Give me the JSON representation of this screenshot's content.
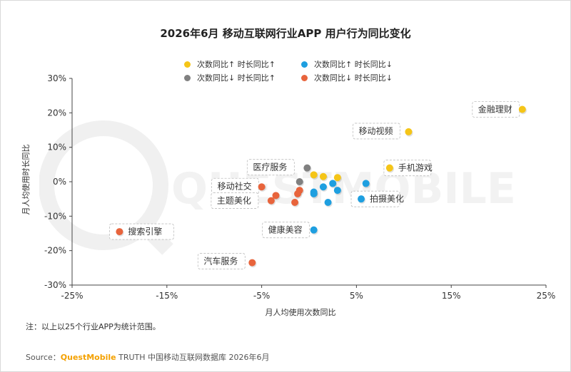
{
  "title": "2026年6月 移动互联网行业APP 用户行为同比变化",
  "legend": [
    {
      "label": "次数同比↑ 时长同比↑",
      "color": "#f5c518",
      "icon": "circle"
    },
    {
      "label": "次数同比↑ 时长同比↓",
      "color": "#1e9fe0",
      "icon": "circle"
    },
    {
      "label": "次数同比↓ 时长同比↑",
      "color": "#808080",
      "icon": "circle"
    },
    {
      "label": "次数同比↓ 时长同比↓",
      "color": "#e8643c",
      "icon": "circle"
    }
  ],
  "note": "注：以上以25个行业APP为统计范围。",
  "source": {
    "prefix": "Source：",
    "brand": "QuestMobile",
    "rest": " TRUTH 中国移动互联网数据库 2026年6月"
  },
  "watermark": "QUESTMOBILE",
  "chart_data": {
    "type": "scatter",
    "xlabel": "月人均使用次数同比",
    "ylabel": "月人均使用时长同比",
    "xlim": [
      -25,
      25
    ],
    "ylim": [
      -30,
      30
    ],
    "x_ticks": [
      "-25%",
      "-15%",
      "-5%",
      "5%",
      "15%",
      "25%"
    ],
    "y_ticks": [
      "30%",
      "20%",
      "10%",
      "0%",
      "-10%",
      "-20%",
      "-30%"
    ],
    "grid": false,
    "points": [
      {
        "x": 22.5,
        "y": 21.0,
        "color": "#f5c518",
        "label": "金融理财"
      },
      {
        "x": 10.5,
        "y": 14.5,
        "color": "#f5c518",
        "label": "移动视频"
      },
      {
        "x": 8.5,
        "y": 4.0,
        "color": "#f5c518",
        "label": "手机游戏"
      },
      {
        "x": 0.5,
        "y": 2.0,
        "color": "#f5c518",
        "label": ""
      },
      {
        "x": 1.5,
        "y": 1.5,
        "color": "#f5c518",
        "label": ""
      },
      {
        "x": 3.0,
        "y": 1.2,
        "color": "#f5c518",
        "label": ""
      },
      {
        "x": -0.2,
        "y": 4.0,
        "color": "#808080",
        "label": "医疗服务"
      },
      {
        "x": -1.0,
        "y": 0.0,
        "color": "#808080",
        "label": ""
      },
      {
        "x": 6.0,
        "y": -0.5,
        "color": "#1e9fe0",
        "label": ""
      },
      {
        "x": 2.5,
        "y": -0.5,
        "color": "#1e9fe0",
        "label": ""
      },
      {
        "x": 1.5,
        "y": -1.5,
        "color": "#1e9fe0",
        "label": ""
      },
      {
        "x": 3.0,
        "y": -2.5,
        "color": "#1e9fe0",
        "label": ""
      },
      {
        "x": 0.5,
        "y": -3.0,
        "color": "#1e9fe0",
        "label": ""
      },
      {
        "x": 0.5,
        "y": -3.5,
        "color": "#1e9fe0",
        "label": ""
      },
      {
        "x": 2.0,
        "y": -6.0,
        "color": "#1e9fe0",
        "label": ""
      },
      {
        "x": 5.5,
        "y": -5.0,
        "color": "#1e9fe0",
        "label": "拍摄美化"
      },
      {
        "x": 0.5,
        "y": -14.0,
        "color": "#1e9fe0",
        "label": "健康美容"
      },
      {
        "x": -5.0,
        "y": -1.5,
        "color": "#e8643c",
        "label": "移动社交"
      },
      {
        "x": -1.0,
        "y": -2.5,
        "color": "#e8643c",
        "label": ""
      },
      {
        "x": -1.2,
        "y": -3.5,
        "color": "#e8643c",
        "label": ""
      },
      {
        "x": -3.5,
        "y": -4.0,
        "color": "#e8643c",
        "label": ""
      },
      {
        "x": -4.0,
        "y": -5.5,
        "color": "#e8643c",
        "label": "主题美化"
      },
      {
        "x": -1.5,
        "y": -6.0,
        "color": "#e8643c",
        "label": ""
      },
      {
        "x": -20.0,
        "y": -14.5,
        "color": "#e8643c",
        "label": "搜索引擎"
      },
      {
        "x": -6.0,
        "y": -23.5,
        "color": "#e8643c",
        "label": "汽车服务"
      }
    ]
  }
}
